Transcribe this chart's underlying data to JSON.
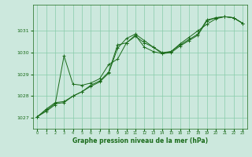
{
  "bg_color": "#cce8dd",
  "line_color": "#1a6b1a",
  "grid_color": "#88ccaa",
  "xlabel": "Graphe pression niveau de la mer (hPa)",
  "ylim": [
    1026.5,
    1032.2
  ],
  "xlim": [
    -0.5,
    23.5
  ],
  "yticks": [
    1027,
    1028,
    1029,
    1030,
    1031
  ],
  "xticks": [
    0,
    1,
    2,
    3,
    4,
    5,
    6,
    7,
    8,
    9,
    10,
    11,
    12,
    13,
    14,
    15,
    16,
    17,
    18,
    19,
    20,
    21,
    22,
    23
  ],
  "series1_x": [
    0,
    1,
    2,
    3,
    4,
    5,
    6,
    7,
    8,
    9,
    10,
    11,
    12,
    13,
    14,
    15,
    16,
    17,
    18,
    19,
    20,
    21,
    22,
    23
  ],
  "series1_y": [
    1027.05,
    1027.4,
    1027.7,
    1027.75,
    1028.0,
    1028.2,
    1028.5,
    1028.7,
    1029.1,
    1030.35,
    1030.45,
    1030.75,
    1030.45,
    1030.25,
    1030.0,
    1030.05,
    1030.35,
    1030.6,
    1030.85,
    1031.5,
    1031.6,
    1031.65,
    1031.6,
    1031.35
  ],
  "series2_x": [
    0,
    1,
    2,
    3,
    4,
    5,
    6,
    7,
    8,
    9,
    10,
    11,
    12,
    13,
    14,
    15,
    16,
    17,
    18,
    19,
    20,
    21,
    22,
    23
  ],
  "series2_y": [
    1027.05,
    1027.35,
    1027.65,
    1027.7,
    1028.0,
    1028.2,
    1028.45,
    1028.65,
    1029.05,
    1030.2,
    1030.65,
    1030.85,
    1030.55,
    1030.25,
    1029.95,
    1030.0,
    1030.3,
    1030.55,
    1030.8,
    1031.45,
    1031.6,
    1031.65,
    1031.6,
    1031.35
  ],
  "series3_x": [
    0,
    1,
    2,
    3,
    4,
    5,
    6,
    7,
    8,
    9,
    10,
    11,
    12,
    13,
    14,
    15,
    16,
    17,
    18,
    19,
    20,
    21,
    22,
    23
  ],
  "series3_y": [
    1027.05,
    1027.3,
    1027.6,
    1029.85,
    1028.55,
    1028.5,
    1028.6,
    1028.8,
    1029.45,
    1029.7,
    1030.45,
    1030.8,
    1030.25,
    1030.05,
    1029.95,
    1030.05,
    1030.4,
    1030.7,
    1031.0,
    1031.3,
    1031.55,
    1031.65,
    1031.6,
    1031.35
  ]
}
